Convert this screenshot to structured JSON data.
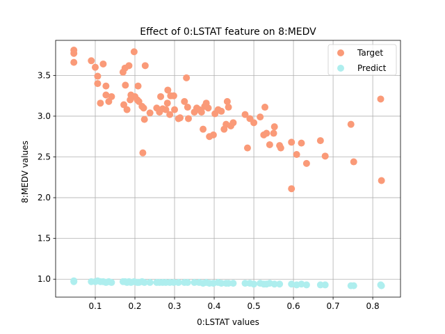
{
  "chart_data": {
    "type": "scatter",
    "title": "Effect of 0:LSTAT feature on 8:MEDV",
    "xlabel": "0:LSTAT values",
    "ylabel": "8:MEDV values",
    "xlim": [
      0.0,
      0.87
    ],
    "ylim": [
      0.78,
      3.93
    ],
    "xticks": [
      0.1,
      0.2,
      0.3,
      0.4,
      0.5,
      0.6,
      0.7,
      0.8
    ],
    "yticks": [
      1.0,
      1.5,
      2.0,
      2.5,
      3.0,
      3.5
    ],
    "grid": true,
    "legend_position": "top-right",
    "series": [
      {
        "name": "Target",
        "color": "#fa9a78",
        "points": [
          [
            0.046,
            3.81
          ],
          [
            0.046,
            3.77
          ],
          [
            0.046,
            3.66
          ],
          [
            0.09,
            3.68
          ],
          [
            0.1,
            3.6
          ],
          [
            0.106,
            3.49
          ],
          [
            0.106,
            3.4
          ],
          [
            0.113,
            3.16
          ],
          [
            0.12,
            3.64
          ],
          [
            0.127,
            3.37
          ],
          [
            0.127,
            3.26
          ],
          [
            0.134,
            3.18
          ],
          [
            0.141,
            3.24
          ],
          [
            0.17,
            3.54
          ],
          [
            0.175,
            3.59
          ],
          [
            0.176,
            3.38
          ],
          [
            0.18,
            3.08
          ],
          [
            0.172,
            3.14
          ],
          [
            0.185,
            3.62
          ],
          [
            0.188,
            3.2
          ],
          [
            0.19,
            3.26
          ],
          [
            0.198,
            3.79
          ],
          [
            0.2,
            3.24
          ],
          [
            0.206,
            3.2
          ],
          [
            0.208,
            3.37
          ],
          [
            0.21,
            3.18
          ],
          [
            0.218,
            3.12
          ],
          [
            0.222,
            3.1
          ],
          [
            0.226,
            3.62
          ],
          [
            0.224,
            2.96
          ],
          [
            0.22,
            2.55
          ],
          [
            0.238,
            3.04
          ],
          [
            0.255,
            3.1
          ],
          [
            0.262,
            3.05
          ],
          [
            0.265,
            3.24
          ],
          [
            0.27,
            3.09
          ],
          [
            0.278,
            3.08
          ],
          [
            0.282,
            3.16
          ],
          [
            0.283,
            3.32
          ],
          [
            0.288,
            3.02
          ],
          [
            0.29,
            3.25
          ],
          [
            0.298,
            3.25
          ],
          [
            0.3,
            3.08
          ],
          [
            0.31,
            2.97
          ],
          [
            0.314,
            2.98
          ],
          [
            0.325,
            3.18
          ],
          [
            0.33,
            3.47
          ],
          [
            0.333,
            3.11
          ],
          [
            0.335,
            2.97
          ],
          [
            0.35,
            3.05
          ],
          [
            0.356,
            3.1
          ],
          [
            0.362,
            3.08
          ],
          [
            0.368,
            3.05
          ],
          [
            0.372,
            2.84
          ],
          [
            0.376,
            3.12
          ],
          [
            0.38,
            3.16
          ],
          [
            0.385,
            3.1
          ],
          [
            0.388,
            2.75
          ],
          [
            0.398,
            2.77
          ],
          [
            0.402,
            3.03
          ],
          [
            0.41,
            3.08
          ],
          [
            0.418,
            3.06
          ],
          [
            0.425,
            2.84
          ],
          [
            0.43,
            2.9
          ],
          [
            0.433,
            3.18
          ],
          [
            0.436,
            3.11
          ],
          [
            0.442,
            2.88
          ],
          [
            0.448,
            2.92
          ],
          [
            0.478,
            3.02
          ],
          [
            0.484,
            2.61
          ],
          [
            0.49,
            2.97
          ],
          [
            0.5,
            2.92
          ],
          [
            0.516,
            2.99
          ],
          [
            0.525,
            2.77
          ],
          [
            0.528,
            3.11
          ],
          [
            0.532,
            2.79
          ],
          [
            0.54,
            2.65
          ],
          [
            0.55,
            2.79
          ],
          [
            0.552,
            2.87
          ],
          [
            0.565,
            2.64
          ],
          [
            0.568,
            2.61
          ],
          [
            0.595,
            2.68
          ],
          [
            0.595,
            2.11
          ],
          [
            0.608,
            2.53
          ],
          [
            0.62,
            2.67
          ],
          [
            0.633,
            2.42
          ],
          [
            0.668,
            2.7
          ],
          [
            0.68,
            2.51
          ],
          [
            0.745,
            2.9
          ],
          [
            0.752,
            2.44
          ],
          [
            0.82,
            3.21
          ],
          [
            0.822,
            2.21
          ]
        ]
      },
      {
        "name": "Predict",
        "color": "#aeeeee",
        "points": [
          [
            0.046,
            0.97
          ],
          [
            0.046,
            0.98
          ],
          [
            0.09,
            0.97
          ],
          [
            0.1,
            0.97
          ],
          [
            0.106,
            0.98
          ],
          [
            0.113,
            0.97
          ],
          [
            0.12,
            0.97
          ],
          [
            0.127,
            0.96
          ],
          [
            0.134,
            0.97
          ],
          [
            0.141,
            0.96
          ],
          [
            0.17,
            0.97
          ],
          [
            0.175,
            0.97
          ],
          [
            0.18,
            0.96
          ],
          [
            0.185,
            0.97
          ],
          [
            0.19,
            0.96
          ],
          [
            0.198,
            0.97
          ],
          [
            0.206,
            0.96
          ],
          [
            0.21,
            0.96
          ],
          [
            0.218,
            0.97
          ],
          [
            0.224,
            0.96
          ],
          [
            0.238,
            0.96
          ],
          [
            0.255,
            0.96
          ],
          [
            0.262,
            0.96
          ],
          [
            0.27,
            0.96
          ],
          [
            0.278,
            0.96
          ],
          [
            0.288,
            0.96
          ],
          [
            0.298,
            0.96
          ],
          [
            0.31,
            0.96
          ],
          [
            0.325,
            0.96
          ],
          [
            0.333,
            0.96
          ],
          [
            0.35,
            0.96
          ],
          [
            0.362,
            0.96
          ],
          [
            0.372,
            0.95
          ],
          [
            0.38,
            0.96
          ],
          [
            0.388,
            0.95
          ],
          [
            0.398,
            0.95
          ],
          [
            0.41,
            0.96
          ],
          [
            0.418,
            0.95
          ],
          [
            0.43,
            0.95
          ],
          [
            0.436,
            0.95
          ],
          [
            0.448,
            0.95
          ],
          [
            0.478,
            0.95
          ],
          [
            0.49,
            0.95
          ],
          [
            0.5,
            0.94
          ],
          [
            0.516,
            0.95
          ],
          [
            0.525,
            0.94
          ],
          [
            0.532,
            0.94
          ],
          [
            0.54,
            0.95
          ],
          [
            0.552,
            0.94
          ],
          [
            0.565,
            0.94
          ],
          [
            0.595,
            0.94
          ],
          [
            0.608,
            0.93
          ],
          [
            0.62,
            0.94
          ],
          [
            0.633,
            0.93
          ],
          [
            0.668,
            0.93
          ],
          [
            0.68,
            0.93
          ],
          [
            0.745,
            0.92
          ],
          [
            0.752,
            0.92
          ],
          [
            0.82,
            0.93
          ],
          [
            0.822,
            0.92
          ]
        ]
      }
    ]
  }
}
